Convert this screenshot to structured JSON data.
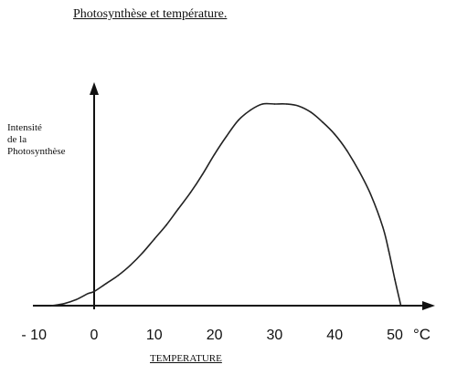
{
  "chart_data": {
    "type": "line",
    "title": "Photosynthèse et température.",
    "ylabel_lines": [
      "Intensité",
      "de la",
      "Photosynthèse"
    ],
    "xlabel": "TEMPERATURE",
    "x_unit": "°C",
    "x_ticks": [
      -10,
      0,
      10,
      20,
      30,
      40,
      50
    ],
    "x_tick_labels": [
      "- 10",
      "0",
      "10",
      "20",
      "30",
      "40",
      "50"
    ],
    "xlim": [
      -12,
      58
    ],
    "ylim": [
      0,
      1.1
    ],
    "y_ticks_labeled": false,
    "grid": false,
    "legend": "none",
    "series": [
      {
        "x": [
          -7,
          -5,
          -3,
          -1,
          0,
          2,
          4,
          6,
          8,
          10,
          12,
          14,
          16,
          18,
          20,
          22,
          24,
          26,
          28,
          30,
          32,
          34,
          36,
          38,
          40,
          42,
          44,
          46,
          48,
          49,
          50,
          51
        ],
        "y": [
          0.0,
          0.01,
          0.03,
          0.06,
          0.07,
          0.11,
          0.15,
          0.2,
          0.26,
          0.33,
          0.4,
          0.48,
          0.56,
          0.65,
          0.75,
          0.84,
          0.92,
          0.97,
          1.0,
          1.0,
          1.0,
          0.99,
          0.96,
          0.91,
          0.85,
          0.77,
          0.67,
          0.55,
          0.39,
          0.27,
          0.13,
          0.0
        ],
        "color": "#222222"
      }
    ]
  }
}
